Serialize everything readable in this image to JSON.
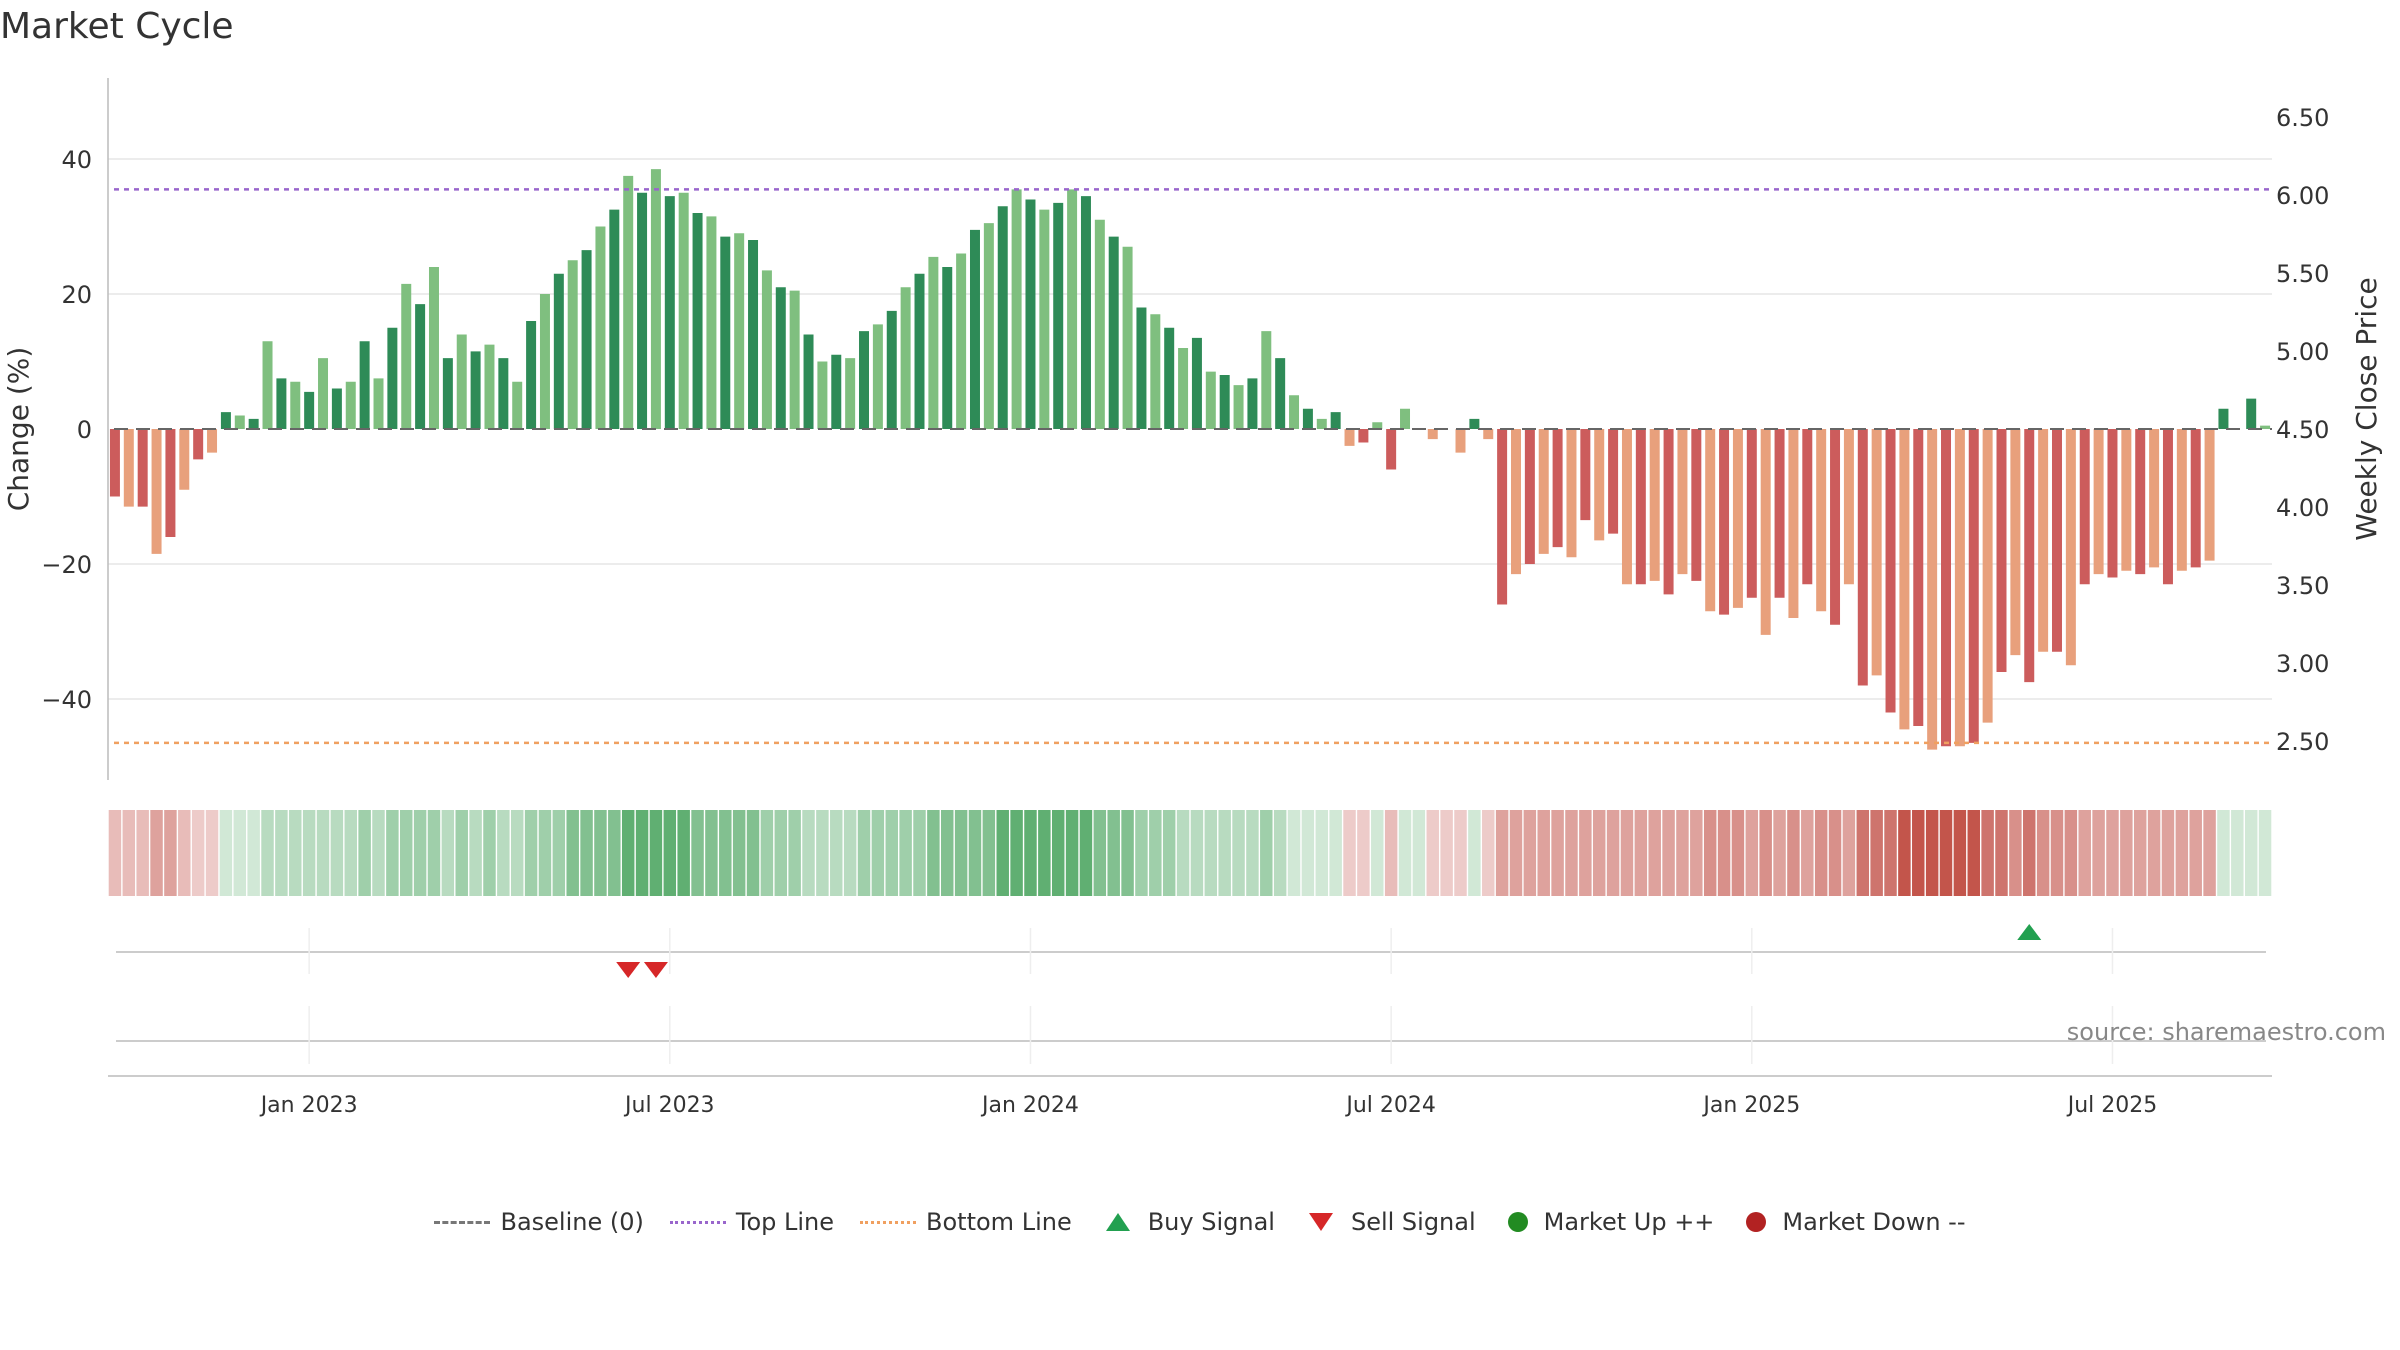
{
  "title": "Market Cycle",
  "source": "source: sharemaestro.com",
  "colors": {
    "pos_dark": "#2e8b57",
    "pos_light": "#7fbf7f",
    "neg_dark": "#cc5c5c",
    "neg_light": "#e8a07c",
    "top_line": "#9966cc",
    "bottom_line": "#f0a060",
    "buy": "#22a050",
    "sell": "#d62728",
    "grid": "#e6e6e6"
  },
  "legend": [
    {
      "label": "Baseline (0)",
      "symbol": "dash"
    },
    {
      "label": "Top Line",
      "symbol": "dot-purple"
    },
    {
      "label": "Bottom Line",
      "symbol": "dot-orange"
    },
    {
      "label": "Buy Signal",
      "symbol": "up"
    },
    {
      "label": "Sell Signal",
      "symbol": "down"
    },
    {
      "label": "Market Up ++",
      "symbol": "circle-g"
    },
    {
      "label": "Market Down --",
      "symbol": "circle-r"
    }
  ],
  "chart_data": {
    "type": "bar",
    "ylabel_left": "Change (%)",
    "ylabel_right": "Weekly Close Price",
    "y_ticks_left": [
      40,
      20,
      0,
      -20,
      -40
    ],
    "y_tick_labels_left": [
      "40",
      "20",
      "0",
      "−20",
      "−40"
    ],
    "ylim_left": [
      -52,
      52
    ],
    "y_ticks_right": [
      "6.50",
      "6.00",
      "5.50",
      "5.00",
      "4.50",
      "4.00",
      "3.50",
      "3.00",
      "2.50"
    ],
    "ylim_right": [
      2.25,
      6.75
    ],
    "top_line": 35.5,
    "bottom_line": -46.5,
    "x_tick_labels": [
      "Jan 2023",
      "Jul 2023",
      "Jan 2024",
      "Jul 2024",
      "Jan 2025",
      "Jul 2025"
    ],
    "x_tick_week_index": [
      14,
      40,
      66,
      92,
      118,
      144
    ],
    "values": [
      -10,
      -11.5,
      -11.5,
      -18.5,
      -16,
      -9,
      -4.5,
      -3.5,
      2.5,
      2,
      1.5,
      13,
      7.5,
      7,
      5.5,
      10.5,
      6,
      7,
      13,
      7.5,
      15,
      21.5,
      18.5,
      24,
      10.5,
      14,
      11.5,
      12.5,
      10.5,
      7,
      16,
      20,
      23,
      25,
      26.5,
      30,
      32.5,
      37.5,
      35,
      38.5,
      34.5,
      35,
      32,
      31.5,
      28.5,
      29,
      28,
      23.5,
      21,
      20.5,
      14,
      10,
      11,
      10.5,
      14.5,
      15.5,
      17.5,
      21,
      23,
      25.5,
      24,
      26,
      29.5,
      30.5,
      33,
      35.5,
      34,
      32.5,
      33.5,
      35.5,
      34.5,
      31,
      28.5,
      27,
      18,
      17,
      15,
      12,
      13.5,
      8.5,
      8,
      6.5,
      7.5,
      14.5,
      10.5,
      5,
      3,
      1.5,
      2.5,
      -2.5,
      -2,
      1,
      -6,
      3,
      0,
      -1.5,
      0,
      -3.5,
      1.5,
      -1.5,
      -26,
      -21.5,
      -20,
      -18.5,
      -17.5,
      -19,
      -13.5,
      -16.5,
      -15.5,
      -23,
      -23,
      -22.5,
      -24.5,
      -21.5,
      -22.5,
      -27,
      -27.5,
      -26.5,
      -25,
      -30.5,
      -25,
      -28,
      -23,
      -27,
      -29,
      -23,
      -38,
      -36.5,
      -42,
      -44.5,
      -44,
      -47.5,
      -47,
      -47,
      -46.5,
      -43.5,
      -36,
      -33.5,
      -37.5,
      -33,
      -33,
      -35,
      -23,
      -21.5,
      -22,
      -21,
      -21.5,
      -20.5,
      -23,
      -21,
      -20.5,
      -19.5,
      3,
      0,
      4.5,
      0.5
    ],
    "heatmap_values": [
      -3,
      -3,
      -3,
      -4,
      -4,
      -3,
      -2,
      -2,
      1,
      1,
      1,
      2,
      2,
      2,
      2,
      2,
      2,
      2,
      3,
      2,
      3,
      3,
      3,
      3,
      2,
      3,
      2,
      3,
      2,
      2,
      3,
      3,
      3,
      4,
      4,
      4,
      4,
      5,
      5,
      5,
      5,
      5,
      4,
      4,
      4,
      4,
      4,
      3,
      3,
      3,
      2,
      2,
      2,
      2,
      3,
      3,
      3,
      3,
      3,
      4,
      4,
      4,
      4,
      4,
      5,
      5,
      5,
      5,
      5,
      5,
      5,
      4,
      4,
      4,
      3,
      3,
      3,
      2,
      2,
      2,
      2,
      2,
      2,
      3,
      2,
      1,
      1,
      1,
      1,
      -2,
      -2,
      1,
      -3,
      1,
      1,
      -2,
      -2,
      -2,
      1,
      -2,
      -4,
      -4,
      -4,
      -4,
      -4,
      -4,
      -4,
      -4,
      -4,
      -4,
      -4,
      -4,
      -4,
      -4,
      -4,
      -5,
      -5,
      -5,
      -4,
      -5,
      -4,
      -5,
      -4,
      -5,
      -5,
      -4,
      -6,
      -6,
      -6,
      -7,
      -7,
      -7,
      -7,
      -7,
      -7,
      -6,
      -6,
      -5,
      -6,
      -5,
      -5,
      -5,
      -4,
      -4,
      -4,
      -4,
      -4,
      -4,
      -4,
      -4,
      -4,
      -4,
      1,
      1,
      1,
      1
    ],
    "buy_signals": [
      138
    ],
    "sell_signals": [
      37,
      39
    ]
  }
}
